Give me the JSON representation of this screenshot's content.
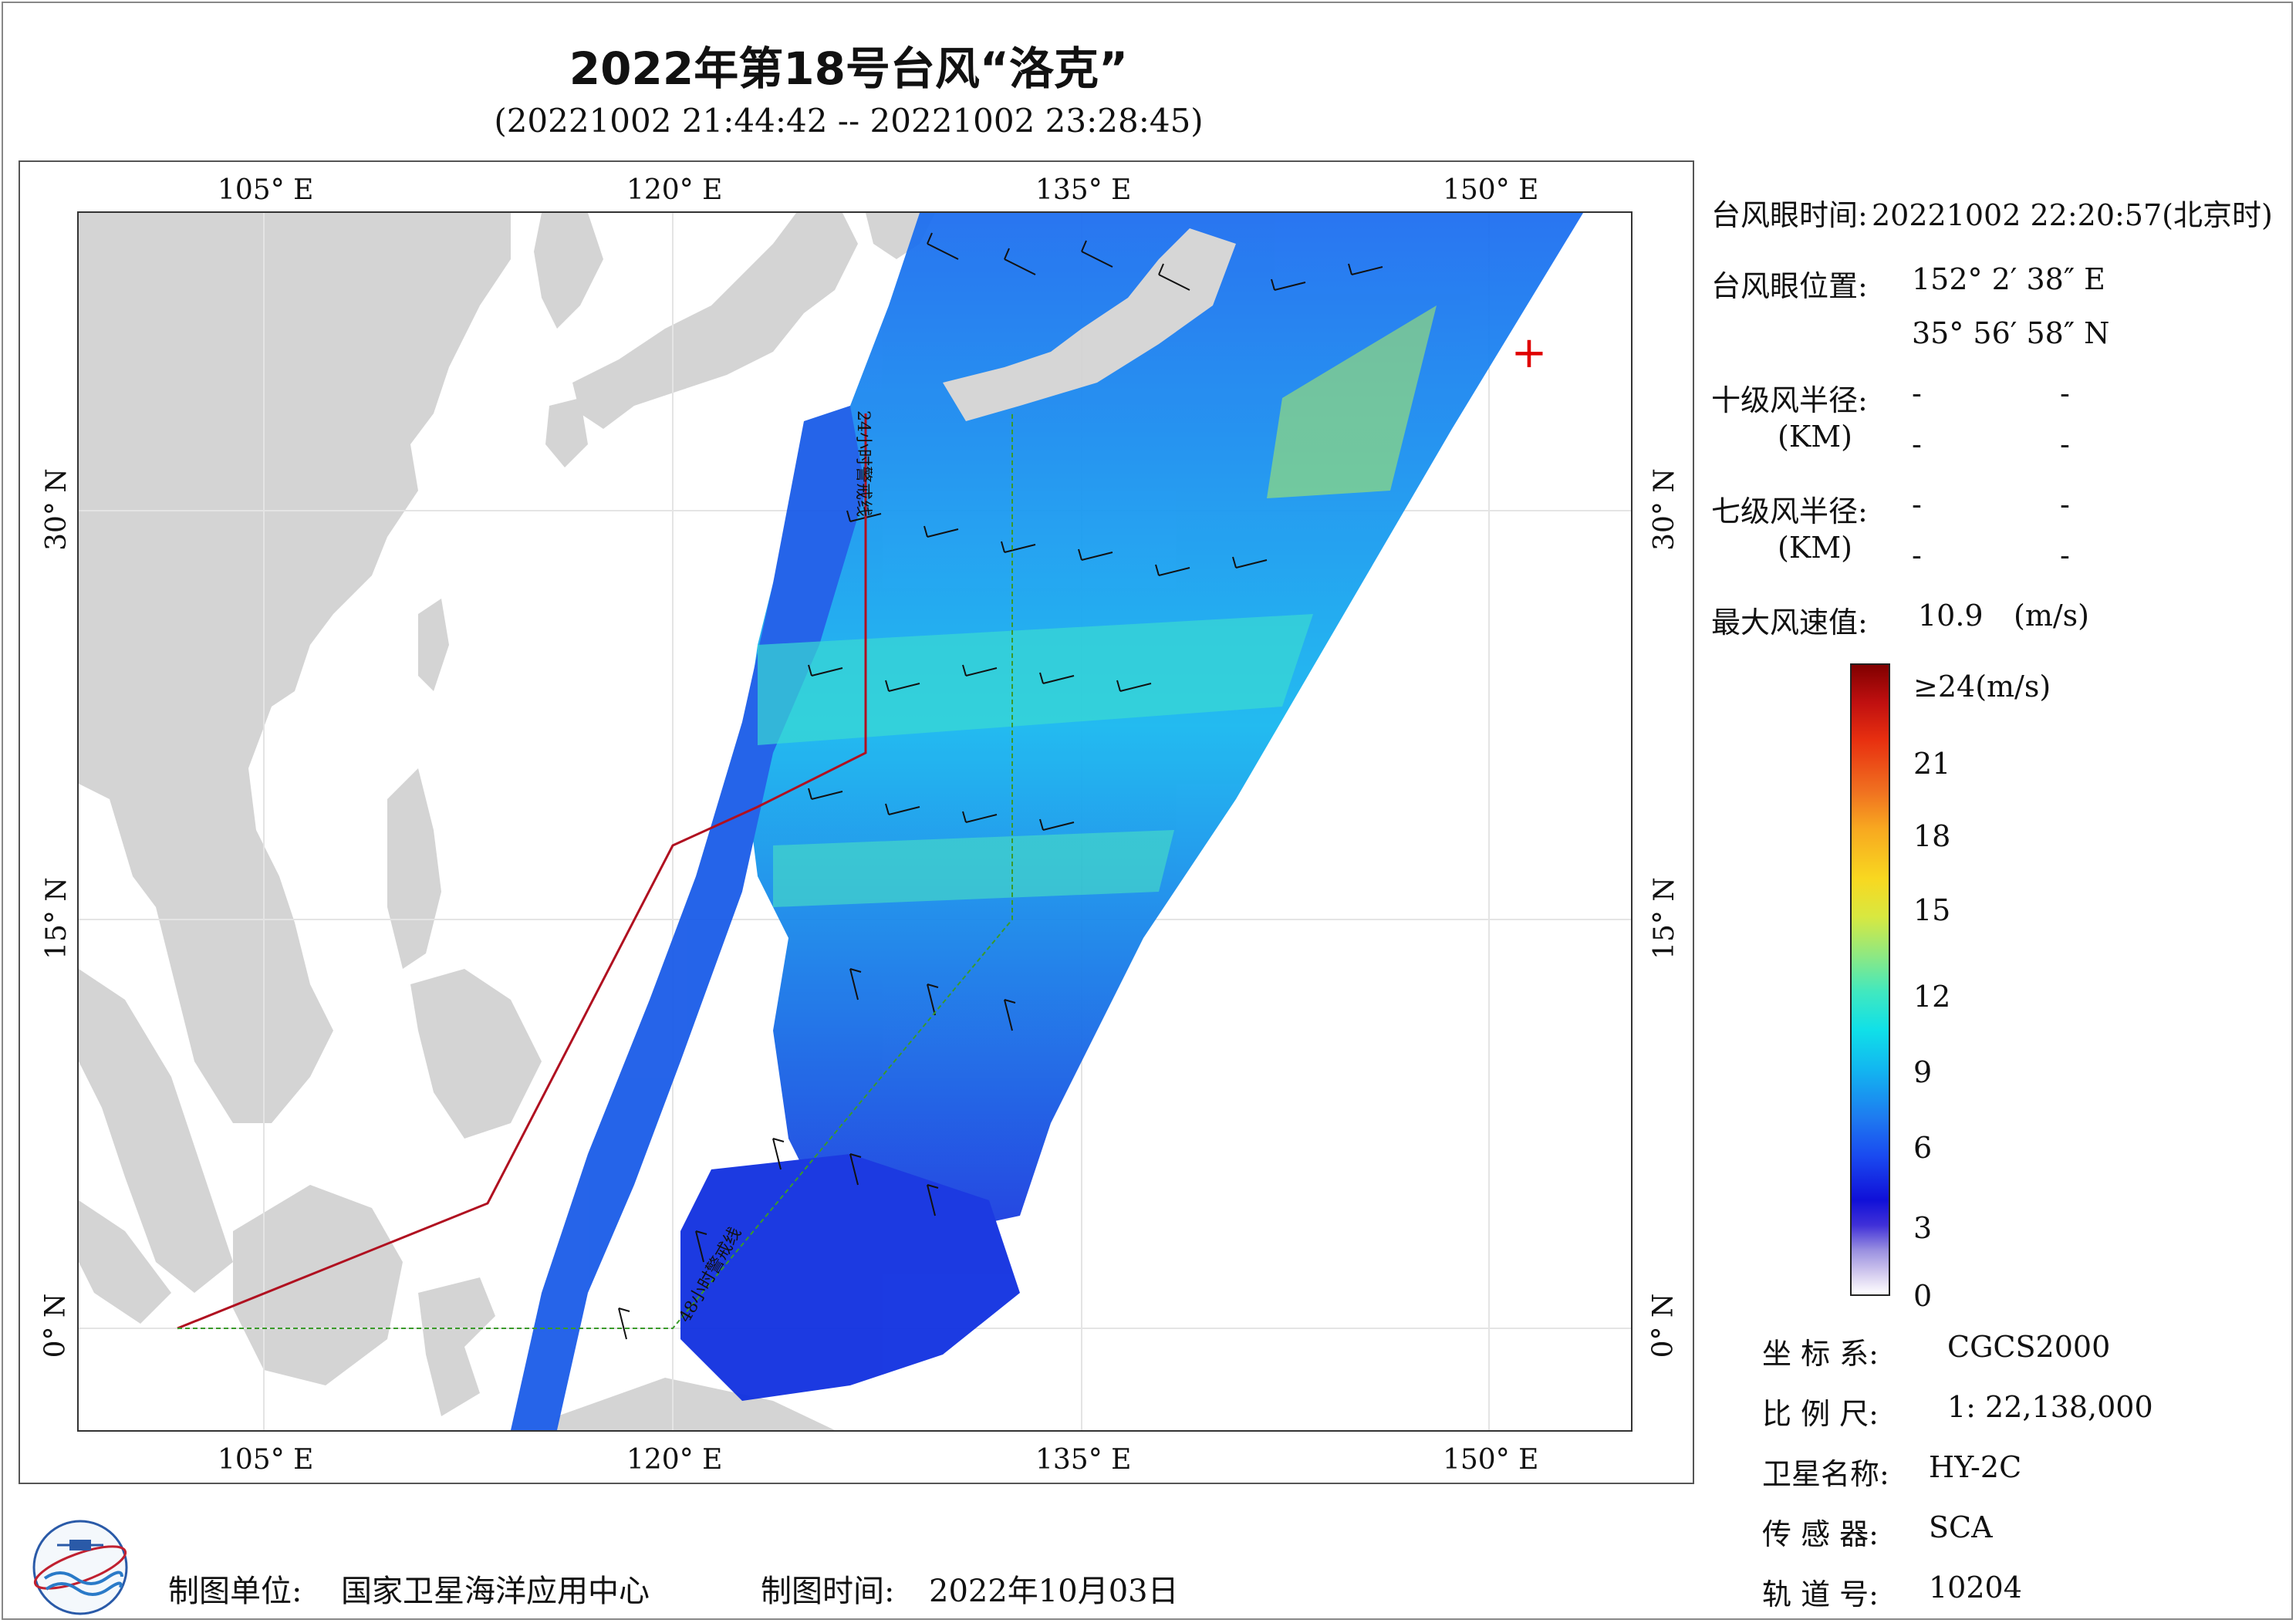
{
  "header": {
    "title": "2022年第18号台风“洛克”",
    "subtitle": "(20221002 21:44:42 -- 20221002 23:28:45)"
  },
  "map": {
    "lon_ticks_top": [
      "105° E",
      "120° E",
      "135° E",
      "150° E"
    ],
    "lon_ticks_bottom": [
      "105° E",
      "120° E",
      "135° E",
      "150° E"
    ],
    "lat_ticks_left": [
      "30° N",
      "15° N",
      "0° N"
    ],
    "lat_ticks_right": [
      "30° N",
      "15° N",
      "0° N"
    ],
    "line_24h_label": "24小时警戒线",
    "line_48h_label": "48小时警戒线",
    "typhoon_marker": "+",
    "colors": {
      "land": "#d4d4d4",
      "sea": "#ffffff",
      "warning_24h": "#b01020",
      "warning_48h": "#3a9a2a",
      "marker": "#e00000"
    }
  },
  "info": {
    "eye_time_label": "台风眼时间:",
    "eye_time_value": "20221002 22:20:57(北京时)",
    "eye_pos_label": "台风眼位置:",
    "eye_pos_lon": "152° 2′ 38″ E",
    "eye_pos_lat": "35° 56′ 58″ N",
    "r10_label": "十级风半径:",
    "r10_unit": "(KM)",
    "r7_label": "七级风半径:",
    "r7_unit": "(KM)",
    "dash": "-",
    "max_wind_label": "最大风速值:",
    "max_wind_value": "10.9",
    "max_wind_unit": "(m/s)"
  },
  "colorbar": {
    "labels": [
      "≥24(m/s)",
      "21",
      "18",
      "15",
      "12",
      "9",
      "6",
      "3",
      "0"
    ]
  },
  "meta": {
    "coord_label": "坐 标 系:",
    "coord_value": "CGCS2000",
    "scale_label": "比 例 尺:",
    "scale_value": "1: 22,138,000",
    "sat_label": "卫星名称:",
    "sat_value": "HY-2C",
    "sensor_label": "传 感 器:",
    "sensor_value": "SCA",
    "orbit_label": "轨 道 号:",
    "orbit_value": "10204"
  },
  "footer": {
    "maker_label": "制图单位:",
    "maker_value": "国家卫星海洋应用中心",
    "time_label": "制图时间:",
    "time_value": "2022年10月03日"
  }
}
